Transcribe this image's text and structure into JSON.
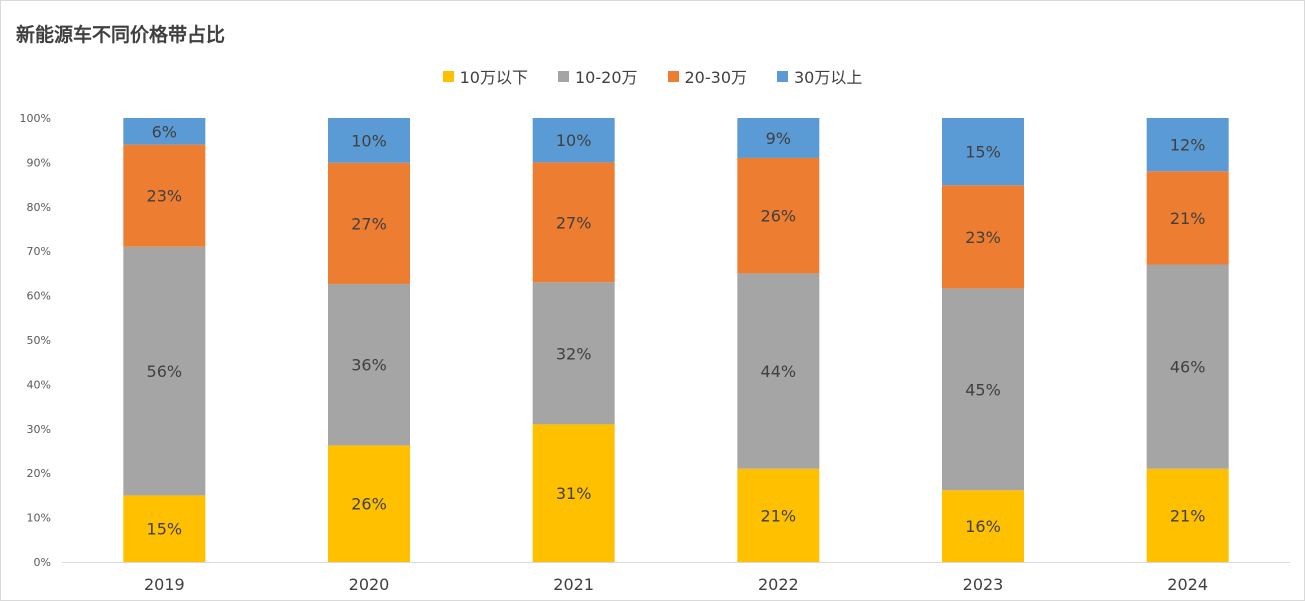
{
  "header": {
    "title": "新能源车不同价格带占比"
  },
  "chart_data": {
    "type": "bar",
    "stacked": true,
    "percent_stacked": true,
    "title": "新能源车不同价格带占比",
    "categories": [
      "2019",
      "2020",
      "2021",
      "2022",
      "2023",
      "2024"
    ],
    "y_ticks": [
      "0%",
      "10%",
      "20%",
      "30%",
      "40%",
      "50%",
      "60%",
      "70%",
      "80%",
      "90%",
      "100%"
    ],
    "ylim": [
      0,
      100
    ],
    "legend_position": "top-center",
    "grid": false,
    "series": [
      {
        "name": "10万以下",
        "color": "#FFC000",
        "values": [
          15,
          26,
          31,
          21,
          16,
          21
        ],
        "labels": [
          "15%",
          "26%",
          "31%",
          "21%",
          "16%",
          "21%"
        ]
      },
      {
        "name": "10-20万",
        "color": "#A5A5A5",
        "values": [
          56,
          36,
          32,
          44,
          45,
          46
        ],
        "labels": [
          "56%",
          "36%",
          "32%",
          "44%",
          "45%",
          "46%"
        ]
      },
      {
        "name": "20-30万",
        "color": "#ED7D31",
        "values": [
          23,
          27,
          27,
          26,
          23,
          21
        ],
        "labels": [
          "23%",
          "27%",
          "27%",
          "26%",
          "23%",
          "21%"
        ]
      },
      {
        "name": "30万以上",
        "color": "#5B9BD5",
        "values": [
          6,
          10,
          10,
          9,
          15,
          12
        ],
        "labels": [
          "6%",
          "10%",
          "10%",
          "9%",
          "15%",
          "12%"
        ]
      }
    ]
  }
}
